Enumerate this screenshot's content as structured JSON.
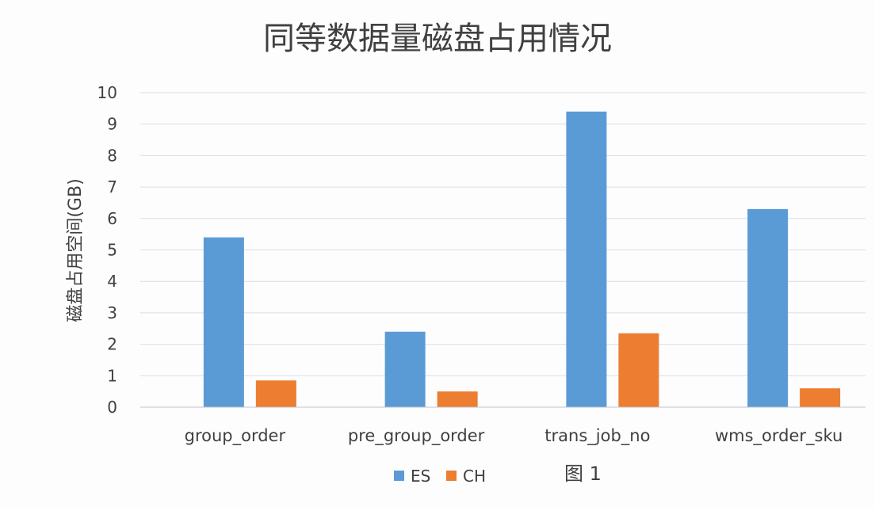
{
  "chart_data": {
    "type": "bar",
    "title": "同等数据量磁盘占用情况",
    "xlabel": "",
    "ylabel": "磁盘占用空间(GB)",
    "categories": [
      "group_order",
      "pre_group_order",
      "trans_job_no",
      "wms_order_sku"
    ],
    "series": [
      {
        "name": "ES",
        "color": "#5b9bd5",
        "values": [
          5.4,
          2.4,
          9.4,
          6.3
        ]
      },
      {
        "name": "CH",
        "color": "#ed7d31",
        "values": [
          0.85,
          0.5,
          2.35,
          0.6
        ]
      }
    ],
    "ylim": [
      0,
      10
    ],
    "yticks": [
      "0",
      "1",
      "2",
      "3",
      "4",
      "5",
      "6",
      "7",
      "8",
      "9",
      "10"
    ],
    "grid": true,
    "legend_position": "bottom",
    "caption": "图 1"
  }
}
